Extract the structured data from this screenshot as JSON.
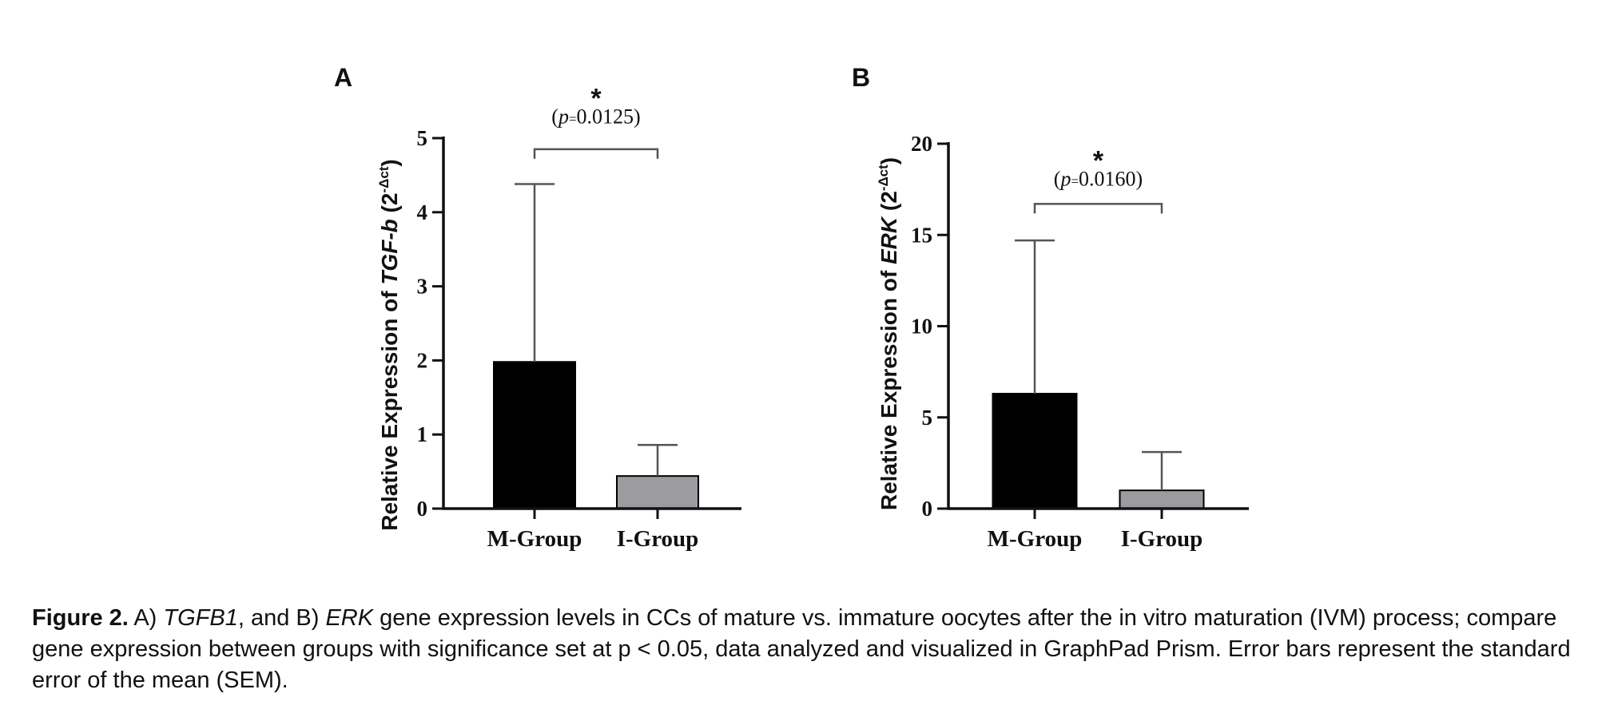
{
  "colors": {
    "m_group": "#000000",
    "i_group": "#9b9ba0",
    "axis": "#111111",
    "error_bar": "#555555"
  },
  "chart_data": [
    {
      "type": "bar",
      "panel": "A",
      "title": "",
      "categories": [
        "M-Group",
        "I-Group"
      ],
      "values": [
        1.98,
        0.44
      ],
      "error": [
        2.4,
        0.42
      ],
      "ylabel_prefix": "Relative Expression of ",
      "ylabel_gene": "TGF-b",
      "ylabel_unit_open": " (2",
      "ylabel_sup": "-Δct",
      "ylabel_unit_close": ")",
      "ylim": [
        0,
        5
      ],
      "yticks": [
        "0",
        "1",
        "2",
        "3",
        "4",
        "5"
      ],
      "significance": {
        "star": "*",
        "p_open": "(",
        "p_sym": "p",
        "p_eq": "=",
        "p_value": "0.0125",
        "p_close": ")",
        "bracket_value": 4.85,
        "label_value": 5.2
      }
    },
    {
      "type": "bar",
      "panel": "B",
      "title": "",
      "categories": [
        "M-Group",
        "I-Group"
      ],
      "values": [
        6.3,
        1.0
      ],
      "error": [
        8.4,
        2.1
      ],
      "ylabel_prefix": "Relative Expression of ",
      "ylabel_gene": "ERK",
      "ylabel_unit_open": " (2",
      "ylabel_sup": "-Δct",
      "ylabel_unit_close": ")",
      "ylim": [
        0,
        20
      ],
      "yticks": [
        "0",
        "5",
        "10",
        "15",
        "20"
      ],
      "significance": {
        "star": "*",
        "p_open": "(",
        "p_sym": "p",
        "p_eq": "=",
        "p_value": "0.0160",
        "p_close": ")",
        "bracket_value": 16.7,
        "label_value": 17.7
      }
    }
  ],
  "caption": {
    "label": "Figure 2.",
    "p1": " A) ",
    "gene_a": "TGFB1",
    "p2": ", and B) ",
    "gene_b": "ERK",
    "p3": " gene expression levels in CCs of mature vs. immature oocytes after the in vitro maturation (IVM) process; compare gene expression between groups with significance set at p < 0.05, data analyzed and visualized in GraphPad Prism. Error bars represent the standard error of the mean (SEM)."
  }
}
